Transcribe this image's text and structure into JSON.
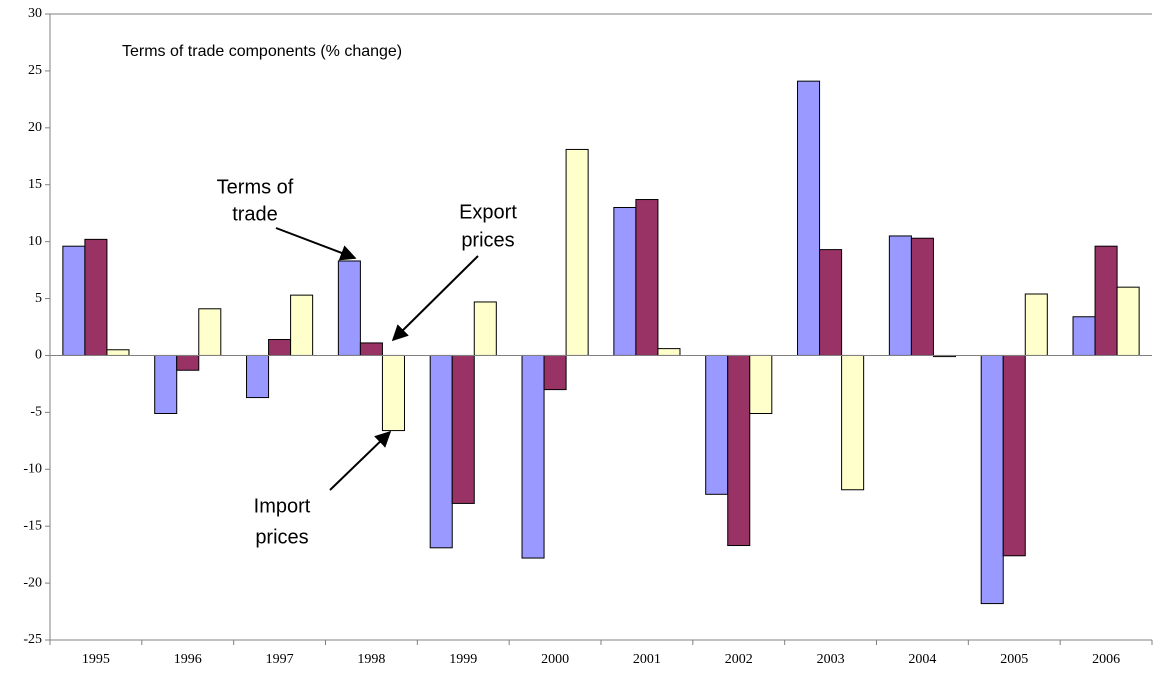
{
  "chart_data": {
    "type": "bar",
    "title": "Terms of trade components (% change)",
    "categories": [
      "1995",
      "1996",
      "1997",
      "1998",
      "1999",
      "2000",
      "2001",
      "2002",
      "2003",
      "2004",
      "2005",
      "2006"
    ],
    "series": [
      {
        "color": "#9999ff",
        "values": [
          9.6,
          -5.1,
          -3.7,
          8.3,
          -16.9,
          -17.8,
          13.0,
          -12.2,
          24.1,
          10.5,
          -21.8,
          3.4
        ]
      },
      {
        "color": "#993366",
        "values": [
          10.2,
          -1.3,
          1.4,
          1.1,
          -13.0,
          -3.0,
          13.7,
          -16.7,
          9.3,
          10.3,
          -17.6,
          9.6
        ]
      },
      {
        "color": "#ffffcc",
        "values": [
          0.5,
          4.1,
          5.3,
          -6.6,
          4.7,
          18.1,
          0.6,
          -5.1,
          -11.8,
          -0.1,
          5.4,
          6.0
        ]
      }
    ],
    "annotations": [
      {
        "lines": [
          "Terms of",
          "trade"
        ]
      },
      {
        "lines": [
          "Export",
          "prices"
        ]
      },
      {
        "lines": [
          "Import",
          "prices"
        ]
      }
    ],
    "ylim": [
      -25,
      30
    ],
    "yticks": [
      -25,
      -20,
      -15,
      -10,
      -5,
      0,
      5,
      10,
      15,
      20,
      25,
      30
    ],
    "grid": false
  }
}
